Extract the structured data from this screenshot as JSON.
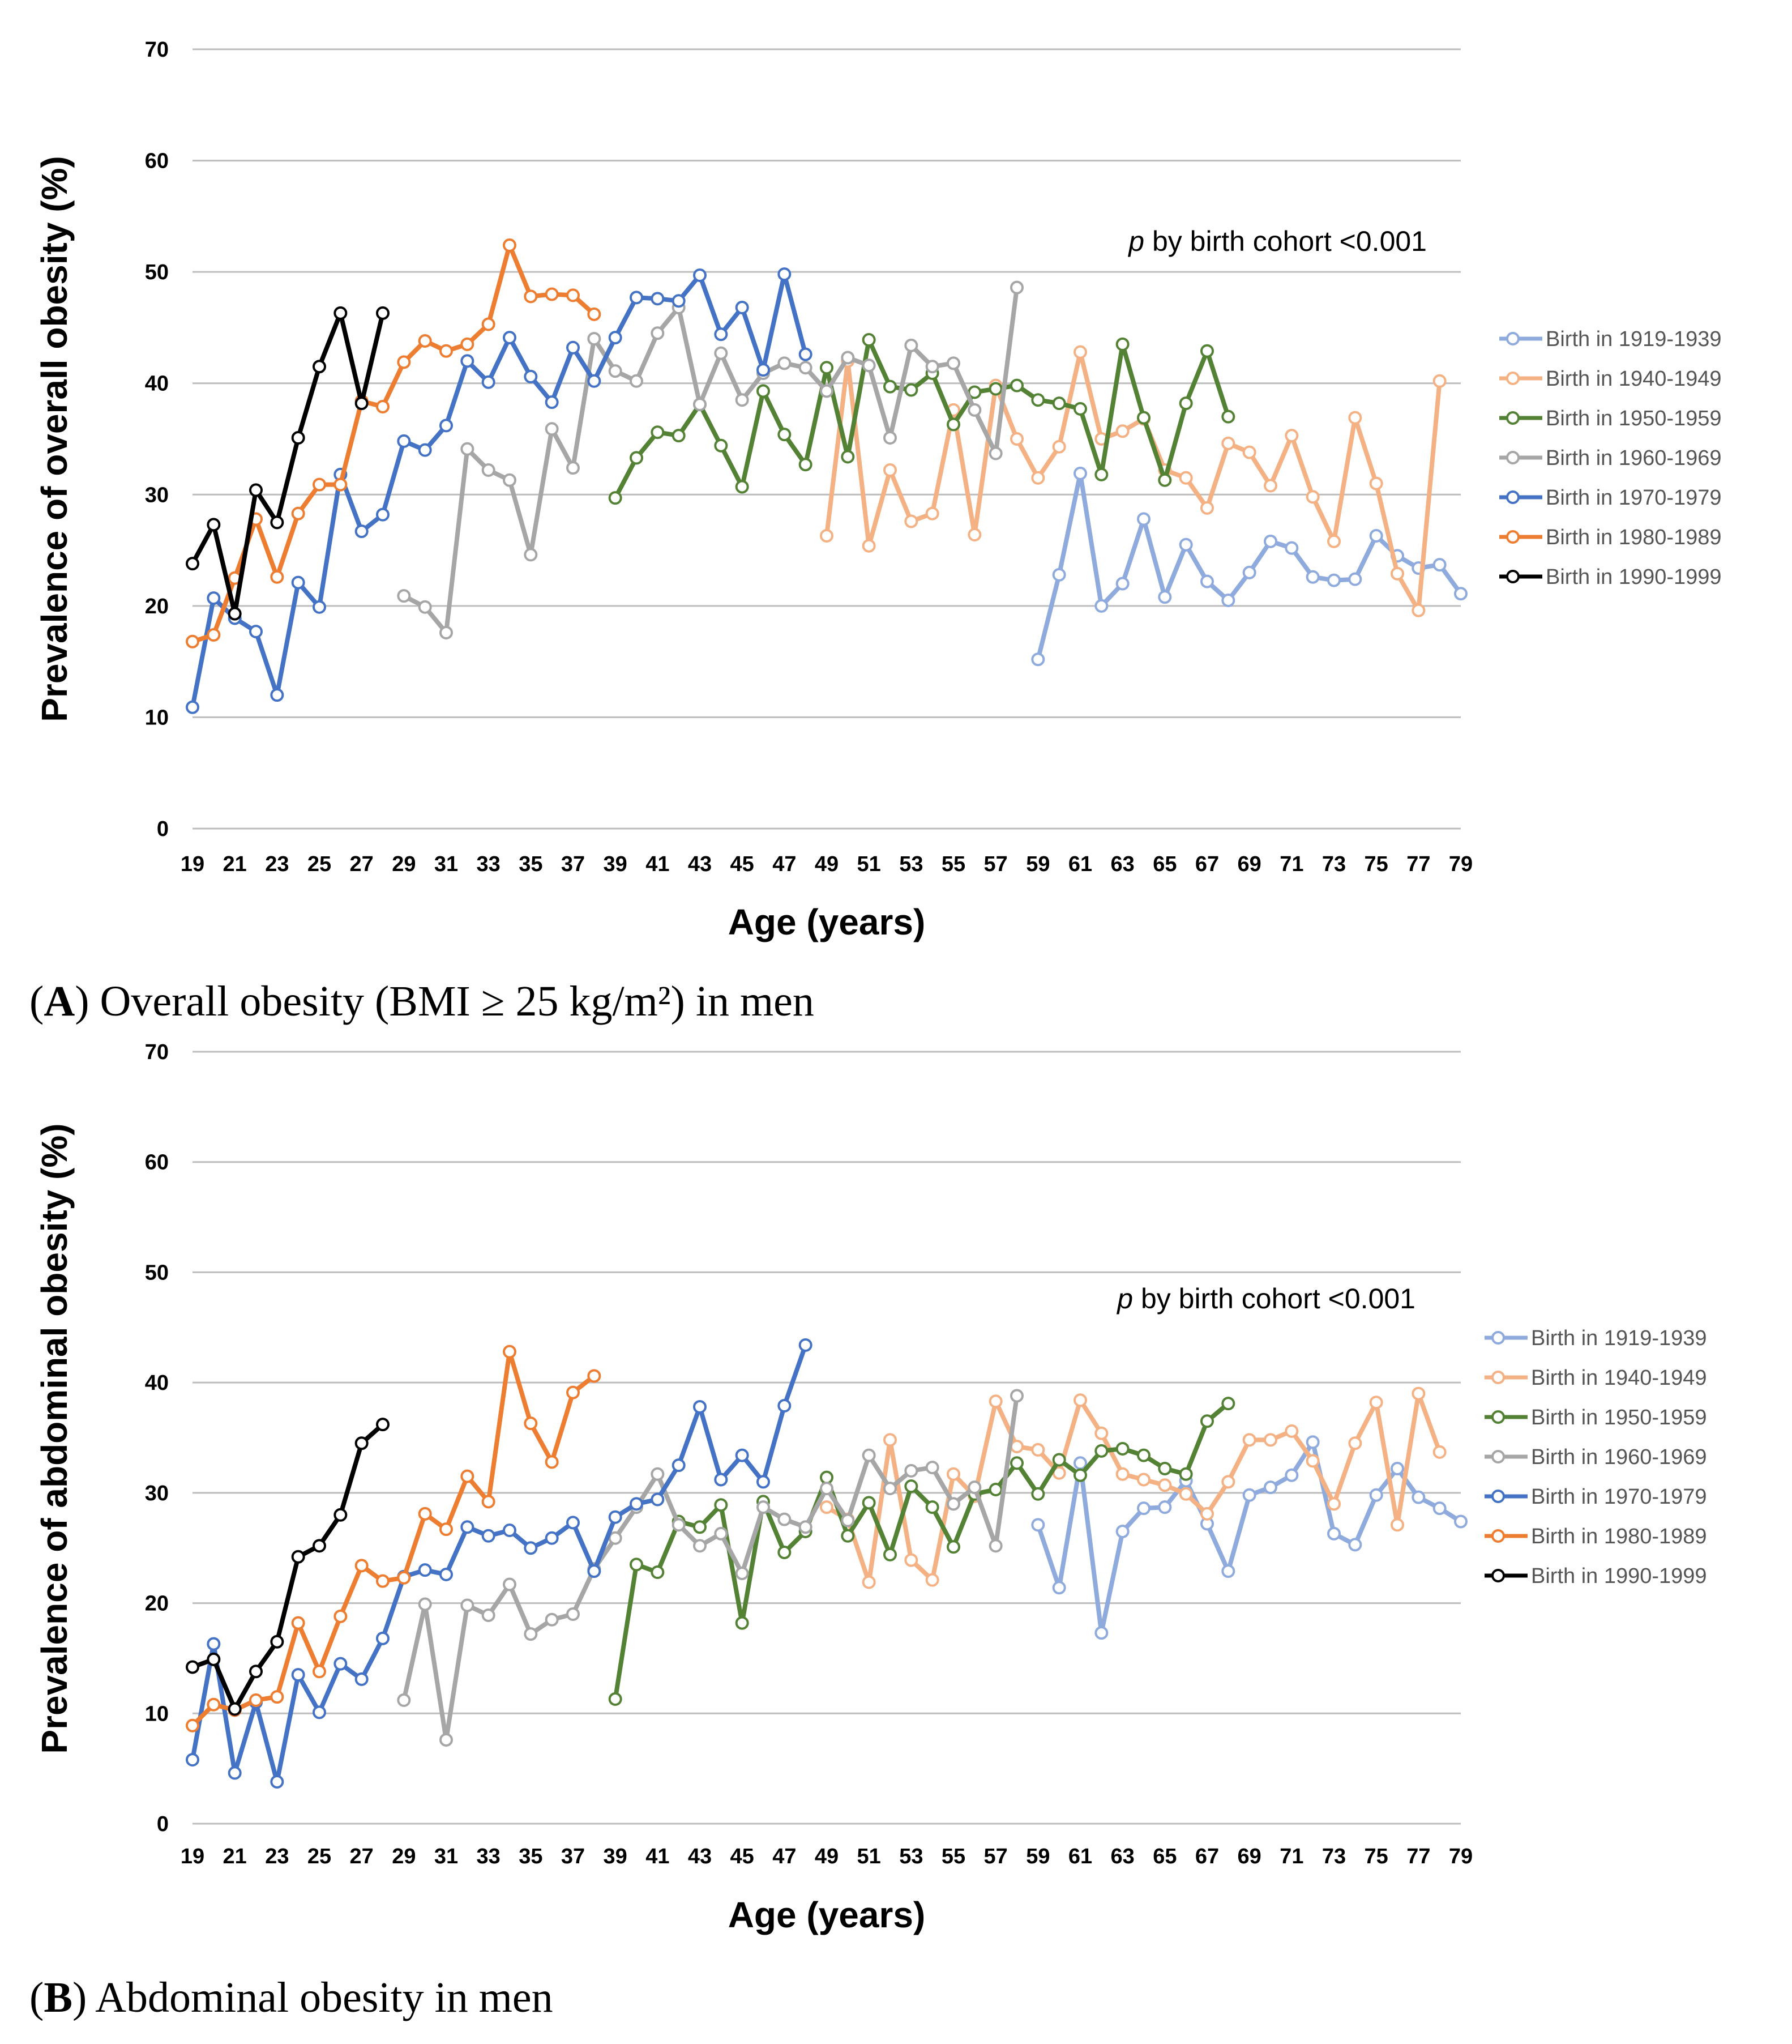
{
  "chart_data": [
    {
      "type": "line",
      "panel": "A",
      "caption_letter": "A",
      "caption_text": "Overall obesity (BMI ≥ 25 kg/m²) in men",
      "annotation_p": "p",
      "annotation_rest": " by birth cohort <0.001",
      "ylabel": "Prevalence of overall obesity (%)",
      "xlabel": "Age (years)",
      "ylim": [
        0,
        70
      ],
      "yticks": [
        0,
        10,
        20,
        30,
        40,
        50,
        60,
        70
      ],
      "xticks": [
        19,
        21,
        23,
        25,
        27,
        29,
        31,
        33,
        35,
        37,
        39,
        41,
        43,
        45,
        47,
        49,
        51,
        53,
        55,
        57,
        59,
        61,
        63,
        65,
        67,
        69,
        71,
        73,
        75,
        77,
        79
      ],
      "xlim": [
        19,
        79
      ],
      "grid": true,
      "legend_position": "right",
      "series": [
        {
          "name": "Birth in 1919-1939",
          "color": "#8faadc",
          "x_start": 59,
          "values": [
            15.2,
            22.8,
            31.9,
            20.0,
            22.0,
            27.8,
            20.8,
            25.5,
            22.2,
            20.5,
            23.0,
            25.8,
            25.2,
            22.6,
            22.3,
            22.4,
            26.3,
            24.5,
            23.4,
            23.7,
            21.1
          ]
        },
        {
          "name": "Birth in 1940-1949",
          "color": "#f4b183",
          "x_start": 49,
          "values": [
            26.3,
            42.0,
            25.4,
            32.2,
            27.6,
            28.3,
            37.6,
            26.4,
            39.8,
            35.0,
            31.5,
            34.3,
            42.8,
            35.0,
            35.7,
            36.8,
            32.2,
            31.5,
            28.8,
            34.6,
            33.8,
            30.8,
            35.3,
            29.8,
            25.8,
            36.9,
            31.0,
            22.9,
            19.6,
            40.2
          ]
        },
        {
          "name": "Birth in 1950-1959",
          "color": "#548235",
          "x_start": 39,
          "values": [
            29.7,
            33.3,
            35.6,
            35.3,
            38.1,
            34.4,
            30.7,
            39.3,
            35.4,
            32.7,
            41.4,
            33.4,
            43.9,
            39.7,
            39.4,
            40.9,
            36.3,
            39.2,
            39.5,
            39.8,
            38.5,
            38.2,
            37.7,
            31.8,
            43.5,
            36.9,
            31.3,
            38.2,
            42.9,
            37.0
          ]
        },
        {
          "name": "Birth in 1960-1969",
          "color": "#a6a6a6",
          "x_start": 29,
          "values": [
            20.9,
            19.9,
            17.6,
            34.1,
            32.2,
            31.3,
            24.6,
            35.9,
            32.4,
            44.0,
            41.1,
            40.2,
            44.5,
            46.8,
            38.1,
            42.7,
            38.5,
            40.9,
            41.8,
            41.4,
            39.3,
            42.3,
            41.6,
            35.1,
            43.4,
            41.5,
            41.8,
            37.6,
            33.7,
            48.6
          ]
        },
        {
          "name": "Birth in 1970-1979",
          "color": "#4472c4",
          "x_start": 19,
          "values": [
            10.9,
            20.7,
            18.9,
            17.7,
            12.0,
            22.1,
            19.9,
            31.8,
            26.7,
            28.2,
            34.8,
            34.0,
            36.2,
            42.0,
            40.1,
            44.1,
            40.6,
            38.3,
            43.2,
            40.2,
            44.1,
            47.7,
            47.6,
            47.4,
            49.7,
            44.4,
            46.8,
            41.2,
            49.8,
            42.6
          ]
        },
        {
          "name": "Birth in 1980-1989",
          "color": "#ed7d31",
          "x_start": 19,
          "values": [
            16.8,
            17.4,
            22.5,
            27.8,
            22.6,
            28.3,
            30.9,
            30.9,
            38.4,
            37.9,
            41.9,
            43.8,
            42.9,
            43.5,
            45.3,
            52.4,
            47.8,
            48.0,
            47.9,
            46.2
          ]
        },
        {
          "name": "Birth in 1990-1999",
          "color": "#000000",
          "x_start": 19,
          "values": [
            23.8,
            27.3,
            19.3,
            30.4,
            27.5,
            35.1,
            41.5,
            46.3,
            38.2,
            46.3
          ]
        }
      ]
    },
    {
      "type": "line",
      "panel": "B",
      "caption_letter": "B",
      "caption_text": "Abdominal obesity in men",
      "annotation_p": "p",
      "annotation_rest": " by birth cohort <0.001",
      "ylabel": "Prevalence of abdominal obesity (%)",
      "xlabel": "Age (years)",
      "ylim": [
        0,
        70
      ],
      "yticks": [
        0,
        10,
        20,
        30,
        40,
        50,
        60,
        70
      ],
      "xticks": [
        19,
        21,
        23,
        25,
        27,
        29,
        31,
        33,
        35,
        37,
        39,
        41,
        43,
        45,
        47,
        49,
        51,
        53,
        55,
        57,
        59,
        61,
        63,
        65,
        67,
        69,
        71,
        73,
        75,
        77,
        79
      ],
      "xlim": [
        19,
        79
      ],
      "grid": true,
      "legend_position": "right",
      "series": [
        {
          "name": "Birth in 1919-1939",
          "color": "#8faadc",
          "x_start": 59,
          "values": [
            27.1,
            21.4,
            32.7,
            17.3,
            26.5,
            28.6,
            28.7,
            31.1,
            27.2,
            22.9,
            29.8,
            30.5,
            31.6,
            34.6,
            26.3,
            25.3,
            29.8,
            32.2,
            29.6,
            28.6,
            27.4
          ]
        },
        {
          "name": "Birth in 1940-1949",
          "color": "#f4b183",
          "x_start": 49,
          "values": [
            28.7,
            27.6,
            21.9,
            34.8,
            23.9,
            22.1,
            31.7,
            29.7,
            38.3,
            34.2,
            33.9,
            31.8,
            38.4,
            35.4,
            31.7,
            31.2,
            30.7,
            29.9,
            28.1,
            31.0,
            34.8,
            34.8,
            35.6,
            32.9,
            29.0,
            34.5,
            38.2,
            27.1,
            39.0,
            33.7
          ]
        },
        {
          "name": "Birth in 1950-1959",
          "color": "#548235",
          "x_start": 39,
          "values": [
            11.3,
            23.5,
            22.8,
            27.4,
            26.9,
            28.9,
            18.2,
            29.2,
            24.6,
            26.5,
            31.4,
            26.1,
            29.1,
            24.4,
            30.6,
            28.7,
            25.1,
            29.9,
            30.3,
            32.7,
            29.9,
            33.0,
            31.6,
            33.8,
            34.0,
            33.4,
            32.2,
            31.7,
            36.5,
            38.1
          ]
        },
        {
          "name": "Birth in 1960-1969",
          "color": "#a6a6a6",
          "x_start": 29,
          "values": [
            11.2,
            19.9,
            7.6,
            19.8,
            18.9,
            21.7,
            17.2,
            18.5,
            19.0,
            23.1,
            25.9,
            28.7,
            31.7,
            27.1,
            25.2,
            26.3,
            22.7,
            28.7,
            27.6,
            26.9,
            30.4,
            27.5,
            33.4,
            30.4,
            32.0,
            32.3,
            29.0,
            30.5,
            25.2,
            38.8
          ]
        },
        {
          "name": "Birth in 1970-1979",
          "color": "#4472c4",
          "x_start": 19,
          "values": [
            5.8,
            16.3,
            4.6,
            11.0,
            3.8,
            13.5,
            10.1,
            14.5,
            13.1,
            16.8,
            22.4,
            23.0,
            22.6,
            26.9,
            26.1,
            26.6,
            25.0,
            25.9,
            27.3,
            22.9,
            27.8,
            29.0,
            29.4,
            32.5,
            37.8,
            31.2,
            33.4,
            31.0,
            37.9,
            43.4
          ]
        },
        {
          "name": "Birth in 1980-1989",
          "color": "#ed7d31",
          "x_start": 19,
          "values": [
            8.9,
            10.8,
            10.3,
            11.2,
            11.5,
            18.2,
            13.8,
            18.8,
            23.4,
            22.0,
            22.3,
            28.1,
            26.7,
            31.5,
            29.2,
            42.8,
            36.3,
            32.8,
            39.1,
            40.6
          ]
        },
        {
          "name": "Birth in 1990-1999",
          "color": "#000000",
          "x_start": 19,
          "values": [
            14.2,
            14.9,
            10.4,
            13.8,
            16.5,
            24.2,
            25.2,
            28.0,
            34.5,
            36.2
          ]
        }
      ]
    }
  ]
}
